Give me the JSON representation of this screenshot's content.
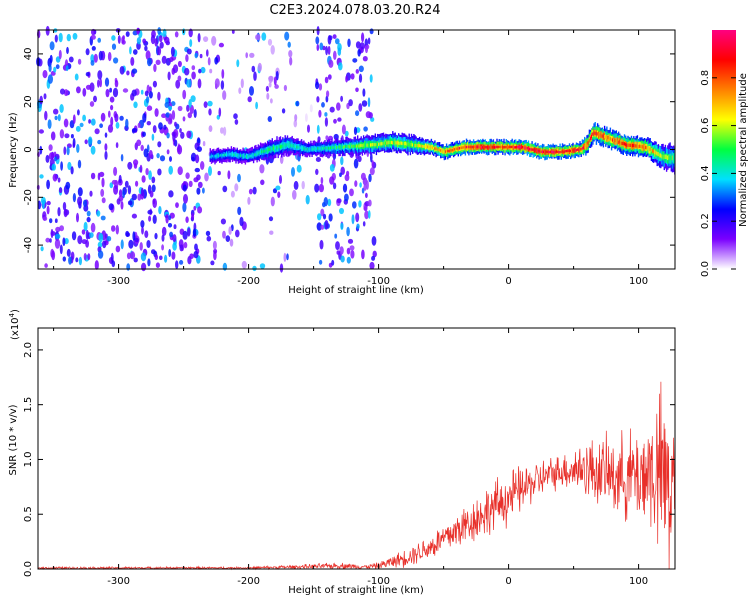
{
  "title": "C2E3.2024.078.03.20.R24",
  "chart_data": [
    {
      "type": "heatmap",
      "xlabel": "Height of straight line (km)",
      "ylabel": "Frequency (Hz)",
      "xlim": [
        -362,
        128
      ],
      "ylim": [
        -50,
        50
      ],
      "x_ticks": [
        -300,
        -200,
        -100,
        0,
        100
      ],
      "x_tick_labels": [
        "-300",
        "-200",
        "-100",
        "0",
        "100"
      ],
      "y_ticks": [
        -40,
        -20,
        0,
        20,
        40
      ],
      "y_tick_labels": [
        "-40",
        "-20",
        "0",
        "20",
        "40"
      ],
      "colorbar": {
        "label": "Normalized spectral amplitude",
        "range": [
          0,
          1
        ],
        "ticks": [
          0.0,
          0.2,
          0.4,
          0.6,
          0.8
        ],
        "tick_labels": [
          "0.0",
          "0.2",
          "0.4",
          "0.6",
          "0.8"
        ],
        "colors": [
          "#ffffff",
          "#7a00ff",
          "#0000ff",
          "#00e0ff",
          "#00ff40",
          "#ffff00",
          "#ff8000",
          "#ff0000",
          "#ff0080"
        ]
      },
      "noise_regions": [
        {
          "x0": -362,
          "x1": -235,
          "level": 0.3
        },
        {
          "x0": -235,
          "x1": -160,
          "level": 0.12
        },
        {
          "x0": -158,
          "x1": -148,
          "level": 0.04
        },
        {
          "x0": -148,
          "x1": -103,
          "level": 0.28
        }
      ],
      "ridge": {
        "x": [
          -230,
          -215,
          -200,
          -185,
          -170,
          -155,
          -105,
          -90,
          -75,
          -60,
          -50,
          -35,
          -20,
          -5,
          10,
          25,
          40,
          55,
          60,
          65,
          75,
          90,
          105,
          118,
          128
        ],
        "y": [
          -3,
          -2,
          -3,
          0,
          2,
          0,
          2,
          3,
          2,
          1,
          -1,
          1,
          1,
          1,
          1,
          -1,
          -1,
          0,
          2,
          7,
          5,
          2,
          1,
          -3,
          -4
        ],
        "amplitude": [
          0.35,
          0.4,
          0.4,
          0.45,
          0.45,
          0.4,
          0.55,
          0.6,
          0.55,
          0.7,
          0.75,
          0.85,
          0.9,
          0.85,
          0.9,
          0.9,
          0.85,
          0.85,
          0.8,
          0.85,
          0.8,
          0.8,
          0.75,
          0.55,
          0.5
        ],
        "width": [
          3,
          3,
          3,
          4,
          4,
          3,
          4,
          4,
          4,
          3,
          3,
          3,
          3,
          3,
          3,
          3,
          3,
          3,
          4,
          4,
          4,
          4,
          4,
          5,
          6
        ]
      }
    },
    {
      "type": "line",
      "xlabel": "Height of straight line (km)",
      "ylabel": "SNR (10 * v/v)",
      "y_multiplier": "(x10",
      "y_multiplier_exp": "4",
      "y_multiplier_close": ")",
      "xlim": [
        -362,
        128
      ],
      "ylim": [
        0,
        2.2
      ],
      "x_ticks": [
        -300,
        -200,
        -100,
        0,
        100
      ],
      "x_tick_labels": [
        "-300",
        "-200",
        "-100",
        "0",
        "100"
      ],
      "y_ticks": [
        0.0,
        0.5,
        1.0,
        1.5,
        2.0
      ],
      "y_tick_labels": [
        "0.0",
        "0.5",
        "1.0",
        "1.5",
        "2.0"
      ],
      "color": "#e8302a",
      "envelope": {
        "x": [
          -362,
          -200,
          -160,
          -130,
          -110,
          -100,
          -80,
          -60,
          -40,
          -20,
          0,
          20,
          40,
          60,
          80,
          100,
          110,
          120,
          128
        ],
        "mean": [
          0.01,
          0.01,
          0.02,
          0.03,
          0.02,
          0.03,
          0.1,
          0.2,
          0.35,
          0.5,
          0.65,
          0.8,
          0.9,
          0.92,
          0.85,
          0.85,
          0.9,
          0.8,
          0.7
        ],
        "spread": [
          0.01,
          0.01,
          0.02,
          0.03,
          0.02,
          0.03,
          0.08,
          0.12,
          0.18,
          0.22,
          0.25,
          0.18,
          0.15,
          0.28,
          0.35,
          0.45,
          0.6,
          0.9,
          1.1
        ]
      }
    }
  ]
}
